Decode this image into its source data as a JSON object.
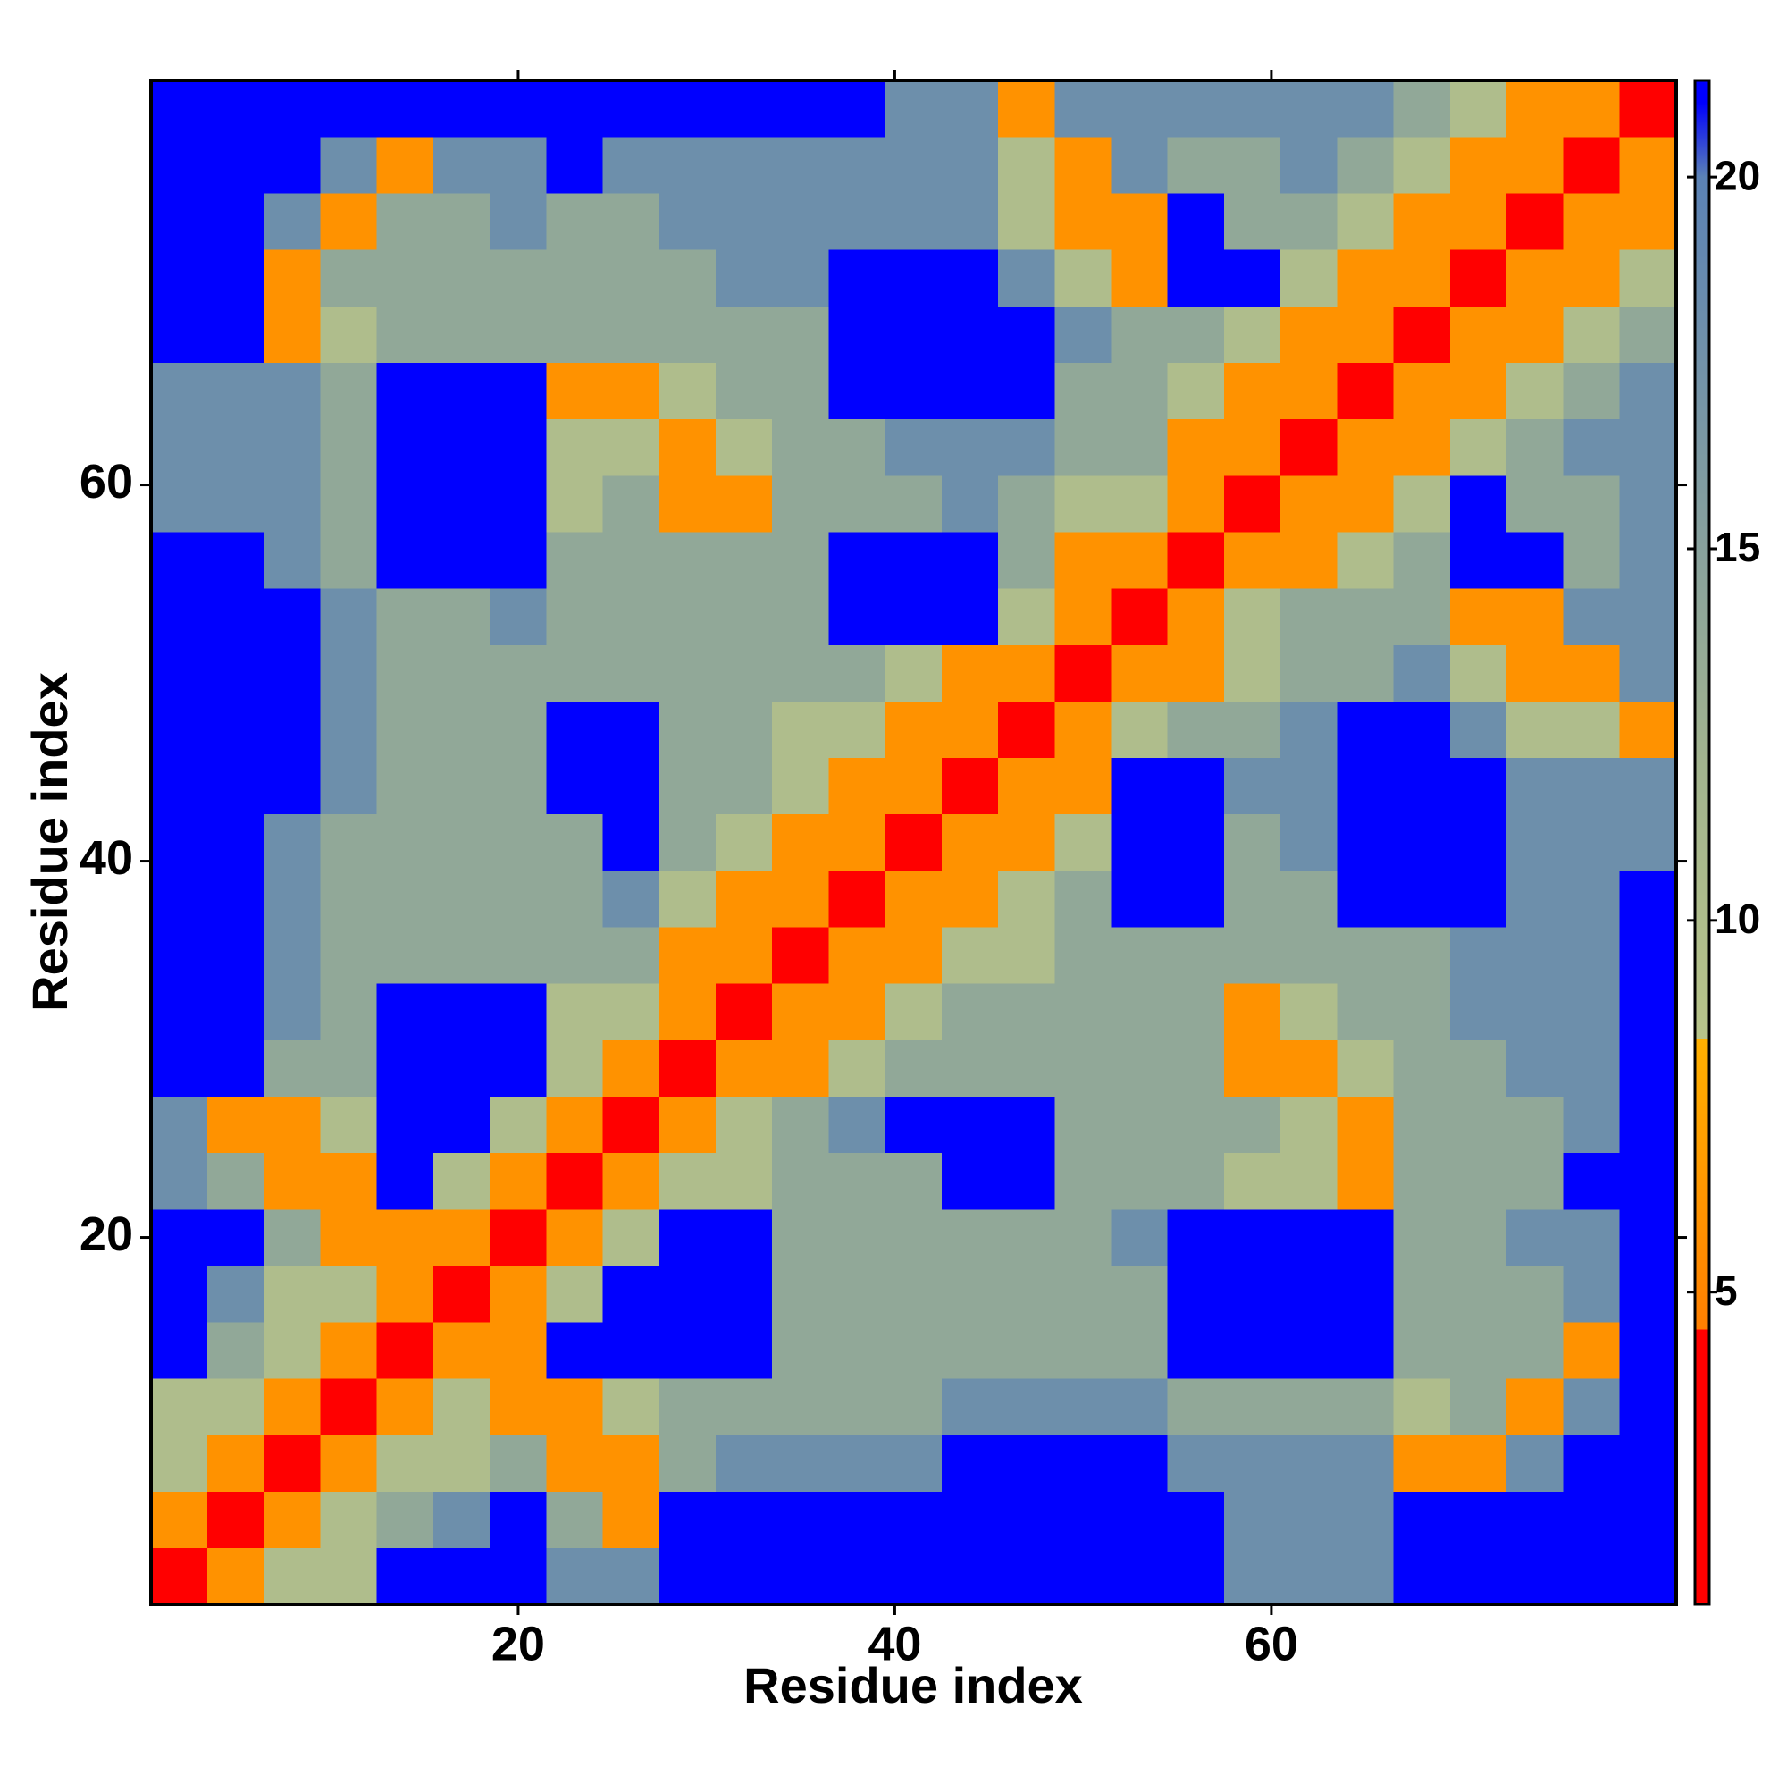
{
  "chart_data": {
    "type": "heatmap",
    "x_label": "Residue index",
    "y_label": "Residue index",
    "xlim": [
      0.5,
      81.5
    ],
    "ylim": [
      0.5,
      81.5
    ],
    "xticks": [
      20,
      40,
      60
    ],
    "yticks": [
      20,
      40,
      60
    ],
    "x_bins": [
      0.5,
      3.5,
      6.5,
      9.5,
      12.5,
      15.5,
      18.5,
      21.5,
      24.5,
      27.5,
      30.5,
      33.5,
      36.5,
      39.5,
      42.5,
      45.5,
      48.5,
      51.5,
      54.5,
      57.5,
      60.5,
      63.5,
      66.5,
      69.5,
      72.5,
      75.5,
      78.5,
      81.5
    ],
    "y_bins": [
      0.5,
      3.5,
      6.5,
      9.5,
      12.5,
      15.5,
      18.5,
      21.5,
      24.5,
      27.5,
      30.5,
      33.5,
      36.5,
      39.5,
      42.5,
      45.5,
      48.5,
      51.5,
      54.5,
      57.5,
      60.5,
      63.5,
      66.5,
      69.5,
      72.5,
      75.5,
      78.5,
      81.5
    ],
    "zlim": [
      0.8,
      21.3
    ],
    "zticks": [
      5,
      10,
      15,
      20
    ],
    "colorscale": [
      [
        0.8,
        "#ff0000"
      ],
      [
        4.5,
        "#ff0000"
      ],
      [
        4.5,
        "#ff7f00"
      ],
      [
        8.4,
        "#ffb000"
      ],
      [
        8.4,
        "#b8c48a"
      ],
      [
        12,
        "#a3b48e"
      ],
      [
        20,
        "#5b82b5"
      ],
      [
        21,
        "#0000ff"
      ],
      [
        21.3,
        "#0000ff"
      ]
    ],
    "z": [
      [
        2,
        6,
        10,
        10,
        22,
        22,
        22,
        18,
        18,
        22,
        22,
        22,
        22,
        22,
        22,
        22,
        22,
        22,
        22,
        18,
        18,
        18,
        22,
        22,
        22,
        22,
        22
      ],
      [
        6,
        2,
        6,
        10,
        14,
        18,
        22,
        14,
        6,
        22,
        22,
        22,
        22,
        22,
        22,
        22,
        22,
        22,
        22,
        18,
        18,
        18,
        22,
        22,
        22,
        22,
        22
      ],
      [
        10,
        6,
        2,
        6,
        10,
        10,
        14,
        6,
        6,
        14,
        18,
        18,
        18,
        18,
        22,
        22,
        22,
        22,
        18,
        18,
        18,
        18,
        6,
        6,
        18,
        22,
        22
      ],
      [
        10,
        10,
        6,
        2,
        6,
        10,
        6,
        6,
        10,
        14,
        14,
        14,
        14,
        14,
        18,
        18,
        18,
        18,
        14,
        14,
        14,
        14,
        10,
        14,
        6,
        18,
        22
      ],
      [
        22,
        14,
        10,
        6,
        2,
        6,
        6,
        22,
        22,
        22,
        22,
        14,
        14,
        14,
        14,
        14,
        14,
        14,
        22,
        22,
        22,
        22,
        14,
        14,
        14,
        6,
        22
      ],
      [
        22,
        18,
        10,
        10,
        6,
        2,
        6,
        10,
        22,
        22,
        22,
        14,
        14,
        14,
        14,
        14,
        14,
        14,
        22,
        22,
        22,
        22,
        14,
        14,
        14,
        18,
        22
      ],
      [
        22,
        22,
        14,
        6,
        6,
        6,
        2,
        6,
        10,
        22,
        22,
        14,
        14,
        14,
        14,
        14,
        14,
        18,
        22,
        22,
        22,
        22,
        14,
        14,
        18,
        18,
        22
      ],
      [
        18,
        14,
        6,
        6,
        22,
        10,
        6,
        2,
        6,
        10,
        10,
        14,
        14,
        14,
        22,
        22,
        14,
        14,
        14,
        10,
        10,
        6,
        14,
        14,
        14,
        22,
        22
      ],
      [
        18,
        6,
        6,
        10,
        22,
        22,
        10,
        6,
        2,
        6,
        10,
        14,
        18,
        22,
        22,
        22,
        14,
        14,
        14,
        14,
        10,
        6,
        14,
        14,
        14,
        18,
        22
      ],
      [
        22,
        22,
        14,
        14,
        22,
        22,
        22,
        10,
        6,
        2,
        6,
        6,
        10,
        14,
        14,
        14,
        14,
        14,
        14,
        6,
        6,
        10,
        14,
        14,
        18,
        18,
        22
      ],
      [
        22,
        22,
        18,
        14,
        22,
        22,
        22,
        10,
        10,
        6,
        2,
        6,
        6,
        10,
        14,
        14,
        14,
        14,
        14,
        6,
        10,
        14,
        14,
        18,
        18,
        18,
        22
      ],
      [
        22,
        22,
        18,
        14,
        14,
        14,
        14,
        14,
        14,
        6,
        6,
        2,
        6,
        6,
        10,
        10,
        14,
        14,
        14,
        14,
        14,
        14,
        14,
        18,
        18,
        18,
        22
      ],
      [
        22,
        22,
        18,
        14,
        14,
        14,
        14,
        14,
        18,
        10,
        6,
        6,
        2,
        6,
        6,
        10,
        14,
        22,
        22,
        14,
        14,
        22,
        22,
        22,
        18,
        18,
        22
      ],
      [
        22,
        22,
        18,
        14,
        14,
        14,
        14,
        14,
        22,
        14,
        10,
        6,
        6,
        2,
        6,
        6,
        10,
        22,
        22,
        14,
        18,
        22,
        22,
        22,
        18,
        18,
        18
      ],
      [
        22,
        22,
        22,
        18,
        14,
        14,
        14,
        22,
        22,
        14,
        14,
        10,
        6,
        6,
        2,
        6,
        6,
        22,
        22,
        18,
        18,
        22,
        22,
        22,
        18,
        18,
        18
      ],
      [
        22,
        22,
        22,
        18,
        14,
        14,
        14,
        22,
        22,
        14,
        14,
        10,
        10,
        6,
        6,
        2,
        6,
        10,
        14,
        14,
        18,
        22,
        22,
        18,
        10,
        10,
        6
      ],
      [
        22,
        22,
        22,
        18,
        14,
        14,
        14,
        14,
        14,
        14,
        14,
        14,
        14,
        10,
        6,
        6,
        2,
        6,
        6,
        10,
        14,
        14,
        18,
        10,
        6,
        6,
        18
      ],
      [
        22,
        22,
        22,
        18,
        14,
        14,
        18,
        14,
        14,
        14,
        14,
        14,
        22,
        22,
        22,
        10,
        6,
        2,
        6,
        10,
        14,
        14,
        14,
        6,
        6,
        18,
        18
      ],
      [
        22,
        22,
        18,
        14,
        22,
        22,
        22,
        14,
        14,
        14,
        14,
        14,
        22,
        22,
        22,
        14,
        6,
        6,
        2,
        6,
        6,
        10,
        14,
        22,
        22,
        14,
        18
      ],
      [
        18,
        18,
        18,
        14,
        22,
        22,
        22,
        10,
        14,
        6,
        6,
        14,
        14,
        14,
        18,
        14,
        10,
        10,
        6,
        2,
        6,
        6,
        10,
        22,
        14,
        14,
        18
      ],
      [
        18,
        18,
        18,
        14,
        22,
        22,
        22,
        10,
        10,
        6,
        10,
        14,
        14,
        18,
        18,
        18,
        14,
        14,
        6,
        6,
        2,
        6,
        6,
        10,
        14,
        18,
        18
      ],
      [
        18,
        18,
        18,
        14,
        22,
        22,
        22,
        6,
        6,
        10,
        14,
        14,
        22,
        22,
        22,
        22,
        14,
        14,
        10,
        6,
        6,
        2,
        6,
        6,
        10,
        14,
        18
      ],
      [
        22,
        22,
        6,
        10,
        14,
        14,
        14,
        14,
        14,
        14,
        14,
        14,
        22,
        22,
        22,
        22,
        18,
        14,
        14,
        10,
        6,
        6,
        2,
        6,
        6,
        10,
        14
      ],
      [
        22,
        22,
        6,
        14,
        14,
        14,
        14,
        14,
        14,
        14,
        18,
        18,
        22,
        22,
        22,
        18,
        10,
        6,
        22,
        22,
        10,
        6,
        6,
        2,
        6,
        6,
        10
      ],
      [
        22,
        22,
        18,
        6,
        14,
        14,
        18,
        14,
        14,
        18,
        18,
        18,
        18,
        18,
        18,
        10,
        6,
        6,
        22,
        14,
        14,
        10,
        6,
        6,
        2,
        6,
        6
      ],
      [
        22,
        22,
        22,
        18,
        6,
        18,
        18,
        22,
        18,
        18,
        18,
        18,
        18,
        18,
        18,
        10,
        6,
        18,
        14,
        14,
        18,
        14,
        10,
        6,
        6,
        2,
        6
      ],
      [
        22,
        22,
        22,
        22,
        22,
        22,
        22,
        22,
        22,
        22,
        22,
        22,
        22,
        18,
        18,
        6,
        18,
        18,
        18,
        18,
        18,
        18,
        14,
        10,
        6,
        6,
        2
      ]
    ]
  }
}
